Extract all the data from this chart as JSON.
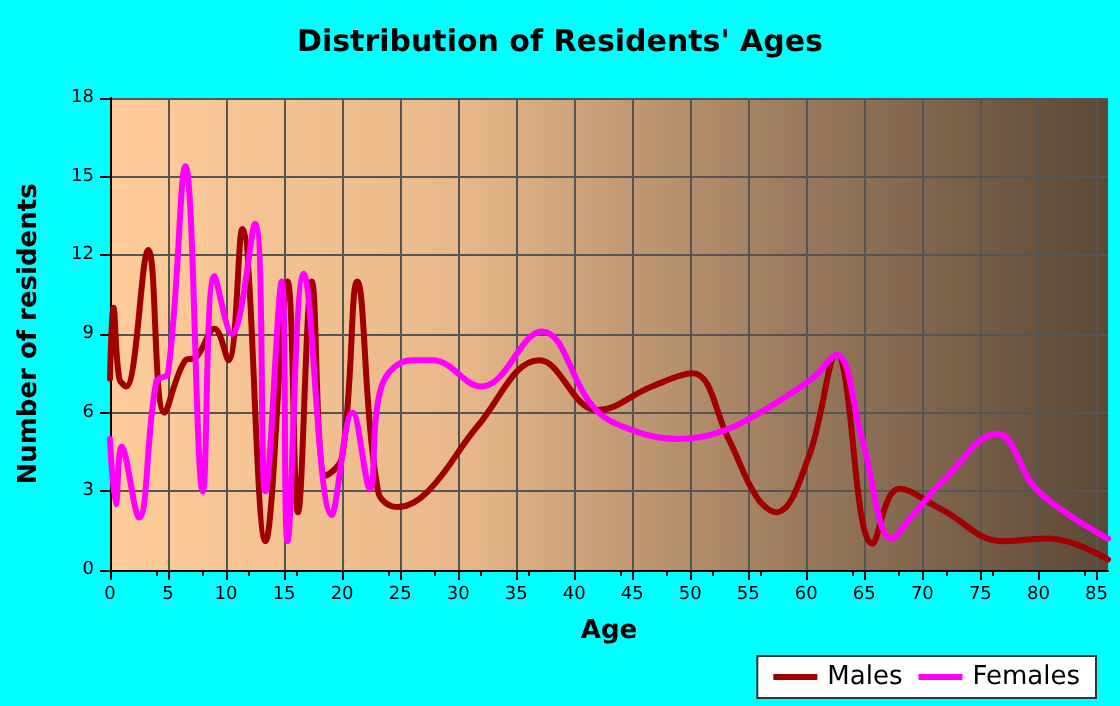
{
  "chart_data": {
    "type": "line",
    "title": "Distribution of Residents' Ages",
    "xlabel": "Age",
    "ylabel": "Number of residents",
    "xlim": [
      0,
      86
    ],
    "xticks": [
      0,
      5,
      10,
      15,
      20,
      25,
      30,
      35,
      40,
      45,
      50,
      55,
      60,
      65,
      70,
      75,
      80,
      85
    ],
    "ylim": [
      0,
      18
    ],
    "yticks": [
      0,
      3,
      6,
      9,
      12,
      15,
      18
    ],
    "grid": true,
    "legend": "bottom right",
    "marker": "none",
    "line_style": "solid",
    "series": [
      {
        "name": "Males",
        "color": "#a00000",
        "x": [
          0,
          0.3,
          0.8,
          1.4,
          3.3,
          4.7,
          6.5,
          7.4,
          9,
          10.2,
          11.4,
          13.4,
          15.3,
          16.2,
          17.4,
          18.6,
          20,
          21.3,
          23.1,
          24.8,
          27.4,
          31.7,
          37,
          42,
          46.7,
          50.2,
          53.3,
          55.7,
          57.4,
          60.2,
          62.6,
          65.7,
          68,
          71.7,
          76.9,
          80.9,
          86
        ],
        "values": [
          7.3,
          10,
          7.3,
          7,
          12.2,
          6,
          8,
          8.1,
          9.2,
          8,
          13,
          1.1,
          11,
          2.2,
          11,
          3.6,
          4.3,
          11,
          3,
          2.4,
          3,
          5.5,
          8,
          6.1,
          7,
          7.5,
          5,
          2.8,
          2.2,
          4.3,
          8.2,
          1,
          3.1,
          2.3,
          1.1,
          1.2,
          0.4
        ]
      },
      {
        "name": "Females",
        "color": "#ff00ff",
        "x": [
          0,
          0.5,
          1,
          2.5,
          4,
          5,
          6.5,
          8,
          9,
          10.5,
          12.5,
          13.4,
          14.8,
          15.3,
          16.7,
          19.1,
          20.9,
          22.4,
          23.4,
          26,
          27.8,
          32,
          37.2,
          41.5,
          44,
          49,
          52.8,
          56,
          60.5,
          62.6,
          64.8,
          67.4,
          69,
          72,
          76.4,
          80,
          86
        ],
        "values": [
          5,
          2.5,
          4.7,
          2,
          7.2,
          7.5,
          15.4,
          3,
          11.2,
          9,
          13.2,
          3,
          11,
          1.1,
          11.3,
          2.1,
          6,
          3.1,
          7,
          8,
          8,
          7,
          9.1,
          6.3,
          5.5,
          5,
          5.3,
          6,
          7.3,
          8.2,
          5,
          1.2,
          2,
          3.5,
          5.2,
          3,
          1.2
        ]
      }
    ]
  }
}
